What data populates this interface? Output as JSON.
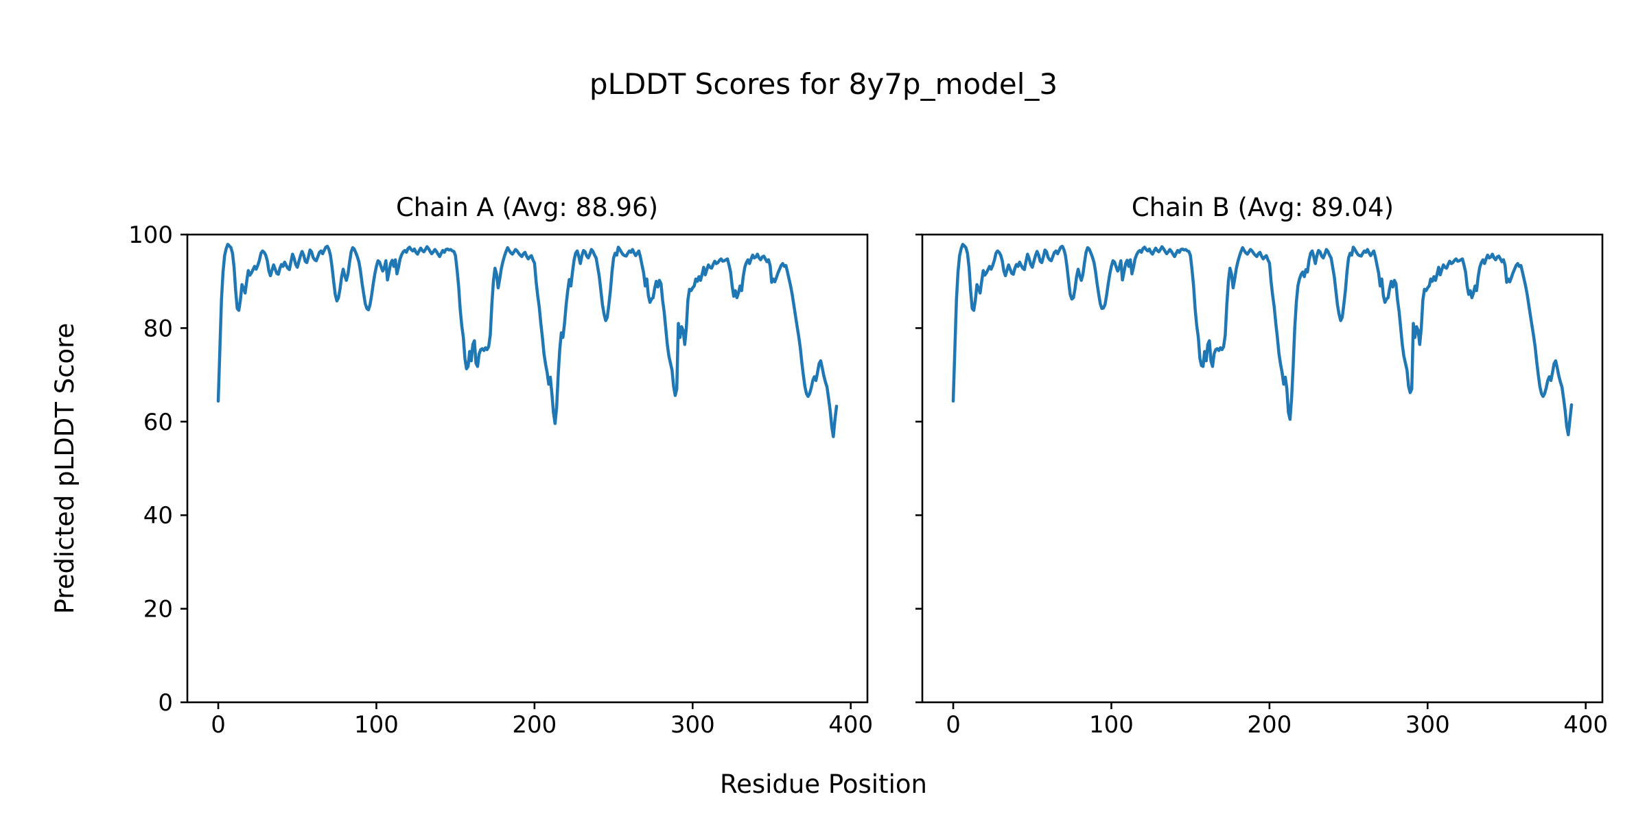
{
  "title": "pLDDT Scores for 8y7p_model_3",
  "labels": {
    "xlabel": "Residue Position",
    "ylabel": "Predicted pLDDT Score"
  },
  "line_color": "#1f77b4",
  "chart_data": [
    {
      "type": "line",
      "title": "Chain A (Avg: 88.96)",
      "chain": "A",
      "avg": 88.96,
      "xlabel": "Residue Position",
      "ylabel": "Predicted pLDDT Score",
      "x_ticks": [
        0,
        100,
        200,
        300,
        400
      ],
      "y_ticks": [
        0,
        20,
        40,
        60,
        80,
        100
      ],
      "xlim": [
        -19.55,
        410.55
      ],
      "ylim": [
        0,
        100
      ],
      "grid": false,
      "line_color": "#1f77b4",
      "x_start": 0,
      "x_step": 1,
      "values": [
        64.4,
        75,
        86,
        92,
        95.5,
        97,
        97.9,
        97.6,
        97.2,
        96,
        93,
        88,
        84.2,
        83.8,
        86,
        89.3,
        88.5,
        87.5,
        90,
        92.3,
        91.3,
        91.8,
        92.5,
        93.2,
        92.6,
        93.4,
        94.5,
        96,
        96.5,
        96.2,
        95.6,
        94.4,
        92.2,
        91.2,
        92.4,
        93.5,
        92.6,
        91.7,
        91.5,
        92.8,
        93.6,
        93.2,
        94.1,
        93.4,
        92.8,
        92.5,
        94.2,
        95.8,
        94.9,
        93.6,
        93,
        94.3,
        95.5,
        96.4,
        95.6,
        94.3,
        94,
        95.2,
        96.7,
        96.3,
        95.1,
        94.6,
        94.4,
        95.3,
        96.2,
        96.5,
        95.9,
        96.6,
        97.3,
        97.5,
        96.8,
        95.5,
        93,
        90,
        87.2,
        85.8,
        86.5,
        88.4,
        91,
        92.6,
        91.2,
        90.2,
        91.5,
        94,
        96.2,
        97.2,
        96.9,
        96.1,
        95.2,
        94.1,
        92.1,
        89.5,
        87.3,
        85.2,
        84.2,
        83.9,
        85,
        87,
        89.4,
        91.6,
        93.2,
        94.4,
        94.1,
        93.1,
        92.2,
        92.9,
        94.4,
        90.3,
        92,
        93.8,
        94.5,
        93.2,
        94.6,
        91.6,
        93,
        94.8,
        95.7,
        96.3,
        96.6,
        96.2,
        97,
        97.3,
        96.8,
        96.5,
        96.9,
        96.2,
        95.8,
        96.5,
        97.1,
        96.6,
        96.3,
        96.8,
        97.4,
        97,
        96.4,
        95.9,
        96.3,
        96.8,
        96.4,
        95.8,
        95.3,
        96,
        96.6,
        96.2,
        96.8,
        96.9,
        96.7,
        96.8,
        96.5,
        96.4,
        95.5,
        92.5,
        89,
        84,
        80.5,
        78,
        73.5,
        71.3,
        71.8,
        75,
        73,
        76.5,
        77.3,
        72.5,
        71.8,
        74.5,
        75.4,
        75.6,
        75.2,
        75.8,
        75.4,
        76,
        78.5,
        85,
        90,
        92.8,
        91.5,
        88.6,
        90.5,
        92.7,
        94.2,
        95.4,
        96.4,
        97.2,
        96.6,
        96.1,
        95.8,
        96.3,
        96.8,
        96.5,
        96,
        95.6,
        95.3,
        95.9,
        96.2,
        95.4,
        94.8,
        95.2,
        95.5,
        94.6,
        93.9,
        90,
        87,
        84.5,
        81,
        78,
        74.5,
        72.3,
        70.5,
        68,
        69.5,
        66,
        62,
        59.6,
        63,
        70,
        75.5,
        79,
        78,
        81,
        85,
        88,
        90.4,
        89,
        92,
        94.5,
        96,
        96.5,
        95.3,
        93.8,
        95.5,
        96.6,
        96.3,
        95.4,
        95,
        95.8,
        96.8,
        96.4,
        95.6,
        95,
        93,
        91,
        88,
        85,
        83,
        81.6,
        82.3,
        85,
        88,
        92,
        95,
        96,
        95.6,
        97.3,
        96.8,
        96.2,
        95.7,
        95.5,
        95.4,
        96,
        96.5,
        96.2,
        96.8,
        96.1,
        95.5,
        96,
        96.5,
        95.2,
        93.5,
        91.8,
        89,
        90.5,
        87,
        85.5,
        86.2,
        86.5,
        88.5,
        90,
        88.8,
        90.2,
        89.5,
        86,
        83.5,
        80,
        76.5,
        74,
        72.5,
        71,
        67.5,
        65.6,
        67,
        81,
        78,
        80.3,
        79.5,
        76.5,
        80,
        86,
        88.3,
        88,
        88.6,
        89,
        90.5,
        90,
        91,
        90.2,
        91.5,
        93,
        91.4,
        92.5,
        93.5,
        93,
        92.8,
        93.6,
        94.3,
        93.8,
        94,
        94.5,
        94.8,
        94.3,
        94.4,
        94.6,
        94.8,
        93.5,
        92,
        89,
        86.8,
        88,
        86.5,
        87.5,
        89,
        88,
        91,
        93,
        94,
        94.6,
        93.8,
        94.8,
        95.6,
        95,
        95.2,
        95.8,
        95,
        94.6,
        95.2,
        95.4,
        94.8,
        94.2,
        94.6,
        93.4,
        89.8,
        90.5,
        89.9,
        90.8,
        91.8,
        92.6,
        93.4,
        93.8,
        93.2,
        93.4,
        92,
        90.5,
        89,
        87.2,
        85,
        82.8,
        80.5,
        78.4,
        76,
        72.8,
        70,
        67.5,
        66,
        65.4,
        66,
        67.2,
        68.8,
        69.6,
        68.8,
        70.5,
        72.4,
        73,
        71.5,
        69.8,
        68.5,
        67.4,
        65,
        62.4,
        59,
        56.8,
        60.5,
        63.3
      ]
    },
    {
      "type": "line",
      "title": "Chain B (Avg: 89.04)",
      "chain": "B",
      "avg": 89.04,
      "xlabel": "Residue Position",
      "ylabel": "Predicted pLDDT Score",
      "x_ticks": [
        0,
        100,
        200,
        300,
        400
      ],
      "y_ticks": [
        0,
        20,
        40,
        60,
        80,
        100
      ],
      "xlim": [
        -19.55,
        410.55
      ],
      "ylim": [
        0,
        100
      ],
      "grid": false,
      "line_color": "#1f77b4",
      "x_start": 0,
      "x_step": 1,
      "values": [
        64.4,
        75,
        86,
        92,
        95.5,
        97,
        97.9,
        97.6,
        97.2,
        96,
        93,
        88,
        84.2,
        83.8,
        86,
        89.3,
        88.5,
        87.5,
        90,
        92.3,
        91.3,
        91.8,
        92.5,
        93.2,
        92.6,
        93.4,
        94.5,
        96,
        96.5,
        96.2,
        95.6,
        94.4,
        92.2,
        91.2,
        92.4,
        93.5,
        92.6,
        91.7,
        91.5,
        92.8,
        93.6,
        93.2,
        94.1,
        93.4,
        92.8,
        92.5,
        94.2,
        95.8,
        94.9,
        93.6,
        93,
        94.3,
        95.5,
        96.4,
        95.6,
        94.3,
        94,
        95.2,
        96.7,
        96.3,
        95.1,
        94.6,
        94.4,
        95.3,
        96.2,
        96.5,
        95.9,
        96.6,
        97.3,
        97.5,
        96.8,
        95.5,
        93,
        90,
        87.2,
        86.2,
        86.5,
        88.4,
        91,
        92.6,
        91.2,
        90.2,
        91.5,
        94,
        96.2,
        97.2,
        96.9,
        96.1,
        95.2,
        94.1,
        92.1,
        89.5,
        87.3,
        85.2,
        84.2,
        84.3,
        85,
        87,
        89.4,
        91.6,
        93.2,
        94.4,
        94.1,
        93.1,
        92.2,
        92.9,
        94.4,
        90.3,
        92,
        93.8,
        94.5,
        93.2,
        94.6,
        91.6,
        93,
        94.8,
        95.7,
        96.3,
        96.6,
        96.2,
        97,
        97.3,
        96.8,
        96.5,
        96.9,
        96.2,
        95.8,
        96.5,
        97.1,
        96.6,
        96.3,
        96.8,
        97.4,
        97,
        96.4,
        95.9,
        96.3,
        96.8,
        96.4,
        95.8,
        95.3,
        96,
        96.6,
        96.2,
        96.8,
        96.9,
        96.7,
        96.8,
        96.5,
        96.4,
        95.5,
        92.5,
        89,
        84,
        80.5,
        78,
        73.5,
        72,
        71.8,
        75,
        73,
        76.5,
        77.3,
        73,
        71.8,
        74.5,
        75.4,
        75.6,
        75.2,
        75.8,
        75.4,
        76,
        78.5,
        85,
        90,
        92.8,
        91.5,
        88.6,
        90.5,
        92.7,
        94.2,
        95.4,
        96.4,
        97.2,
        96.6,
        96.1,
        95.8,
        96.3,
        96.8,
        96.5,
        96,
        95.6,
        95.3,
        95.9,
        96.2,
        95.4,
        94.8,
        95.2,
        95.5,
        94.6,
        93.9,
        90,
        87,
        84.5,
        81,
        78,
        74.5,
        72.3,
        70.5,
        68,
        69.5,
        67,
        62,
        60.5,
        65,
        72,
        80,
        85.5,
        89,
        90.5,
        91.5,
        92,
        91,
        92.5,
        92,
        94.5,
        96,
        96.5,
        95.3,
        93.8,
        95.5,
        96.6,
        96.3,
        95.4,
        95,
        95.8,
        96.8,
        96.4,
        95.6,
        95,
        93,
        91,
        88,
        85,
        83,
        81.6,
        82.3,
        85,
        88,
        92,
        95,
        96,
        95.6,
        97.3,
        96.8,
        96.2,
        95.7,
        95.5,
        95.4,
        96,
        96.5,
        96.2,
        96.8,
        96.1,
        95.5,
        96,
        96.5,
        95.2,
        93.5,
        91.8,
        89,
        90.5,
        87,
        85.5,
        86.2,
        86.5,
        88.5,
        90,
        88.8,
        90.2,
        89.5,
        86,
        83.5,
        80,
        76.5,
        74,
        72.5,
        71,
        67.5,
        66.2,
        67,
        81,
        78,
        80.3,
        79.5,
        76.5,
        80,
        86,
        88.3,
        88,
        88.6,
        89,
        90.5,
        90,
        91,
        90.2,
        91.5,
        93,
        91.4,
        92.5,
        93.5,
        93,
        92.8,
        93.6,
        94.3,
        93.8,
        94,
        94.5,
        94.8,
        94.3,
        94.4,
        94.6,
        94.8,
        93.5,
        92,
        89,
        87.2,
        88,
        86.5,
        87.5,
        89,
        88,
        91,
        93,
        94,
        94.6,
        93.8,
        94.8,
        95.6,
        95,
        95.2,
        95.8,
        95,
        94.6,
        95.2,
        95.4,
        94.8,
        94.2,
        94.6,
        93.4,
        89.8,
        90.5,
        89.9,
        90.8,
        91.8,
        92.6,
        93.4,
        93.8,
        93.2,
        93.4,
        92,
        90.5,
        89,
        87.2,
        85,
        82.8,
        80.5,
        78.4,
        76,
        72.8,
        70,
        67.5,
        66,
        65.4,
        66,
        67.2,
        68.8,
        69.6,
        68.8,
        70.5,
        72.4,
        73,
        71.5,
        69.8,
        68.5,
        67.4,
        65,
        62.4,
        59,
        57.2,
        60.5,
        63.6
      ]
    }
  ]
}
